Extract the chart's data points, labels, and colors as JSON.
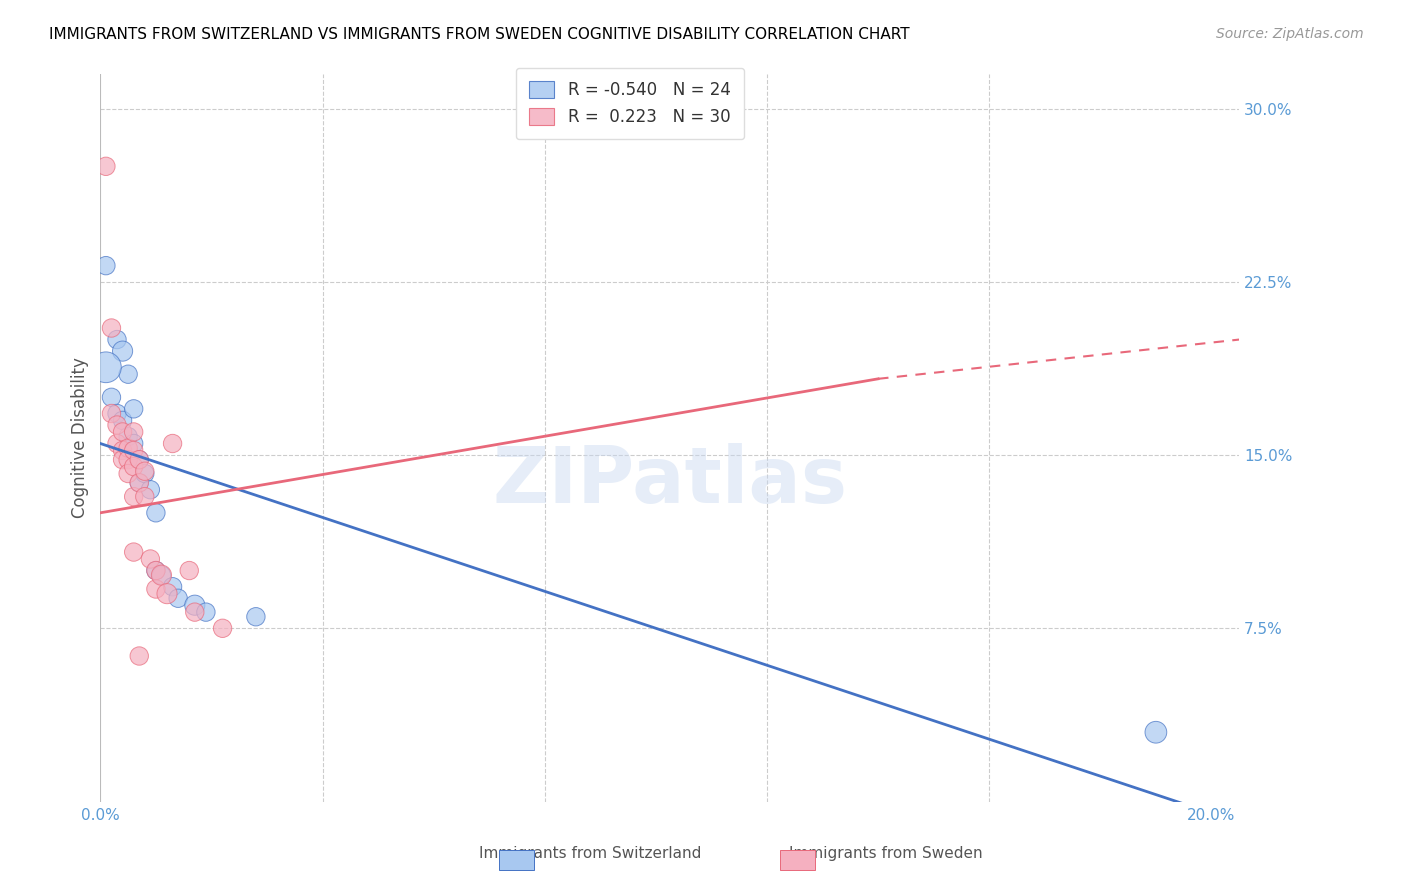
{
  "title": "IMMIGRANTS FROM SWITZERLAND VS IMMIGRANTS FROM SWEDEN COGNITIVE DISABILITY CORRELATION CHART",
  "source": "Source: ZipAtlas.com",
  "ylabel": "Cognitive Disability",
  "R_blue": -0.54,
  "N_blue": 24,
  "R_pink": 0.223,
  "N_pink": 30,
  "color_blue": "#a8c8f0",
  "color_pink": "#f5b0c0",
  "color_line_blue": "#4472c4",
  "color_line_pink": "#e8687a",
  "color_axis_label": "#5b9bd5",
  "watermark": "ZIPatlas",
  "blue_line": [
    0.0,
    0.155,
    0.2,
    -0.005
  ],
  "pink_line_solid": [
    0.0,
    0.125,
    0.14,
    0.183
  ],
  "pink_line_dashed": [
    0.14,
    0.183,
    0.205,
    0.2
  ],
  "swiss_points": [
    [
      0.001,
      0.232,
      5
    ],
    [
      0.003,
      0.2,
      5
    ],
    [
      0.004,
      0.195,
      6
    ],
    [
      0.005,
      0.185,
      5
    ],
    [
      0.002,
      0.175,
      5
    ],
    [
      0.003,
      0.168,
      5
    ],
    [
      0.004,
      0.165,
      5
    ],
    [
      0.005,
      0.158,
      5
    ],
    [
      0.006,
      0.17,
      5
    ],
    [
      0.001,
      0.188,
      14
    ],
    [
      0.006,
      0.155,
      5
    ],
    [
      0.007,
      0.148,
      5
    ],
    [
      0.007,
      0.138,
      5
    ],
    [
      0.008,
      0.142,
      5
    ],
    [
      0.009,
      0.135,
      5
    ],
    [
      0.01,
      0.125,
      5
    ],
    [
      0.01,
      0.1,
      5
    ],
    [
      0.011,
      0.098,
      5
    ],
    [
      0.013,
      0.093,
      5
    ],
    [
      0.014,
      0.088,
      5
    ],
    [
      0.017,
      0.085,
      6
    ],
    [
      0.019,
      0.082,
      5
    ],
    [
      0.028,
      0.08,
      5
    ],
    [
      0.19,
      0.03,
      7
    ]
  ],
  "sweden_points": [
    [
      0.001,
      0.275,
      5
    ],
    [
      0.002,
      0.205,
      5
    ],
    [
      0.002,
      0.168,
      5
    ],
    [
      0.003,
      0.163,
      5
    ],
    [
      0.003,
      0.155,
      5
    ],
    [
      0.004,
      0.16,
      5
    ],
    [
      0.004,
      0.152,
      5
    ],
    [
      0.004,
      0.148,
      5
    ],
    [
      0.005,
      0.153,
      5
    ],
    [
      0.005,
      0.148,
      5
    ],
    [
      0.005,
      0.142,
      5
    ],
    [
      0.006,
      0.16,
      5
    ],
    [
      0.006,
      0.152,
      5
    ],
    [
      0.006,
      0.145,
      5
    ],
    [
      0.006,
      0.132,
      5
    ],
    [
      0.006,
      0.108,
      5
    ],
    [
      0.007,
      0.148,
      5
    ],
    [
      0.007,
      0.138,
      5
    ],
    [
      0.008,
      0.143,
      5
    ],
    [
      0.008,
      0.132,
      5
    ],
    [
      0.009,
      0.105,
      5
    ],
    [
      0.01,
      0.1,
      5
    ],
    [
      0.01,
      0.092,
      5
    ],
    [
      0.011,
      0.098,
      6
    ],
    [
      0.012,
      0.09,
      6
    ],
    [
      0.013,
      0.155,
      5
    ],
    [
      0.016,
      0.1,
      5
    ],
    [
      0.017,
      0.082,
      5
    ],
    [
      0.022,
      0.075,
      5
    ],
    [
      0.007,
      0.063,
      5
    ]
  ]
}
